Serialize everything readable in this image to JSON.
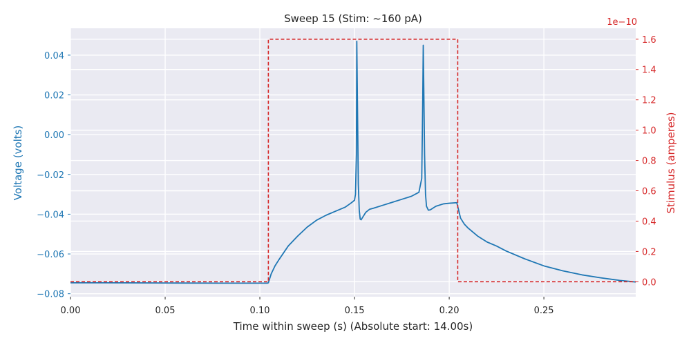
{
  "chart_data": {
    "type": "line",
    "title": "Sweep 15 (Stim: ~160 pA)",
    "xlabel": "Time within sweep (s) (Absolute start: 14.00s)",
    "ylabel_left": "Voltage (volts)",
    "ylabel_right": "Stimulus (amperes)",
    "right_axis_offset_label": "1e−10",
    "xlim": [
      0.0,
      0.2985
    ],
    "ylim_left": [
      -0.0815,
      0.0535
    ],
    "ylim_right": [
      -0.0986,
      1.6719
    ],
    "right_axis_scale": 1e-10,
    "x_ticks": [
      0.0,
      0.05,
      0.1,
      0.15,
      0.2,
      0.25
    ],
    "x_tick_labels": [
      "0.00",
      "0.05",
      "0.10",
      "0.15",
      "0.20",
      "0.25"
    ],
    "y_left_ticks": [
      0.04,
      0.02,
      0.0,
      -0.02,
      -0.04,
      -0.06,
      -0.08
    ],
    "y_left_tick_labels": [
      "0.04",
      "0.02",
      "0.00",
      "−0.02",
      "−0.04",
      "−0.06",
      "−0.08"
    ],
    "y_right_ticks": [
      0.0,
      0.2,
      0.4,
      0.6,
      0.8,
      1.0,
      1.2,
      1.4,
      1.6
    ],
    "y_right_tick_labels": [
      "0.0",
      "0.2",
      "0.4",
      "0.6",
      "0.8",
      "1.0",
      "1.2",
      "1.4",
      "1.6"
    ],
    "grid": true,
    "colors": {
      "voltage": "#1f77b4",
      "stimulus": "#d62728",
      "background": "#eaeaf2",
      "grid": "#ffffff",
      "text": "#262626"
    },
    "series": [
      {
        "axis": "left",
        "style": "solid",
        "x": [
          0.0,
          0.02,
          0.05,
          0.08,
          0.1,
          0.104,
          0.1045,
          0.106,
          0.108,
          0.11,
          0.115,
          0.12,
          0.125,
          0.13,
          0.135,
          0.14,
          0.145,
          0.148,
          0.15,
          0.1505,
          0.151,
          0.1512,
          0.1515,
          0.152,
          0.1525,
          0.153,
          0.1535,
          0.154,
          0.156,
          0.158,
          0.16,
          0.165,
          0.17,
          0.175,
          0.18,
          0.184,
          0.1855,
          0.186,
          0.1863,
          0.1865,
          0.187,
          0.1875,
          0.188,
          0.189,
          0.19,
          0.193,
          0.197,
          0.2,
          0.204,
          0.205,
          0.206,
          0.208,
          0.21,
          0.215,
          0.22,
          0.225,
          0.23,
          0.24,
          0.25,
          0.26,
          0.27,
          0.28,
          0.29,
          0.2985
        ],
        "y": [
          -0.0745,
          -0.0745,
          -0.0746,
          -0.0747,
          -0.0747,
          -0.0747,
          -0.0745,
          -0.07,
          -0.066,
          -0.063,
          -0.056,
          -0.051,
          -0.0465,
          -0.043,
          -0.0405,
          -0.0385,
          -0.0365,
          -0.0345,
          -0.033,
          -0.03,
          -0.01,
          0.047,
          0.02,
          -0.025,
          -0.038,
          -0.0425,
          -0.0428,
          -0.042,
          -0.039,
          -0.0375,
          -0.037,
          -0.0355,
          -0.034,
          -0.0325,
          -0.031,
          -0.029,
          -0.022,
          0.015,
          0.045,
          0.03,
          -0.01,
          -0.03,
          -0.036,
          -0.038,
          -0.0378,
          -0.036,
          -0.0348,
          -0.0345,
          -0.0342,
          -0.038,
          -0.042,
          -0.045,
          -0.047,
          -0.051,
          -0.054,
          -0.056,
          -0.0585,
          -0.0625,
          -0.066,
          -0.0685,
          -0.0705,
          -0.072,
          -0.0733,
          -0.0741
        ]
      },
      {
        "axis": "right",
        "style": "dashed",
        "x": [
          0.0,
          0.1045,
          0.1045,
          0.2045,
          0.2045,
          0.2985
        ],
        "y": [
          0.0,
          0.0,
          1.6,
          1.6,
          0.0,
          0.0
        ]
      }
    ]
  }
}
